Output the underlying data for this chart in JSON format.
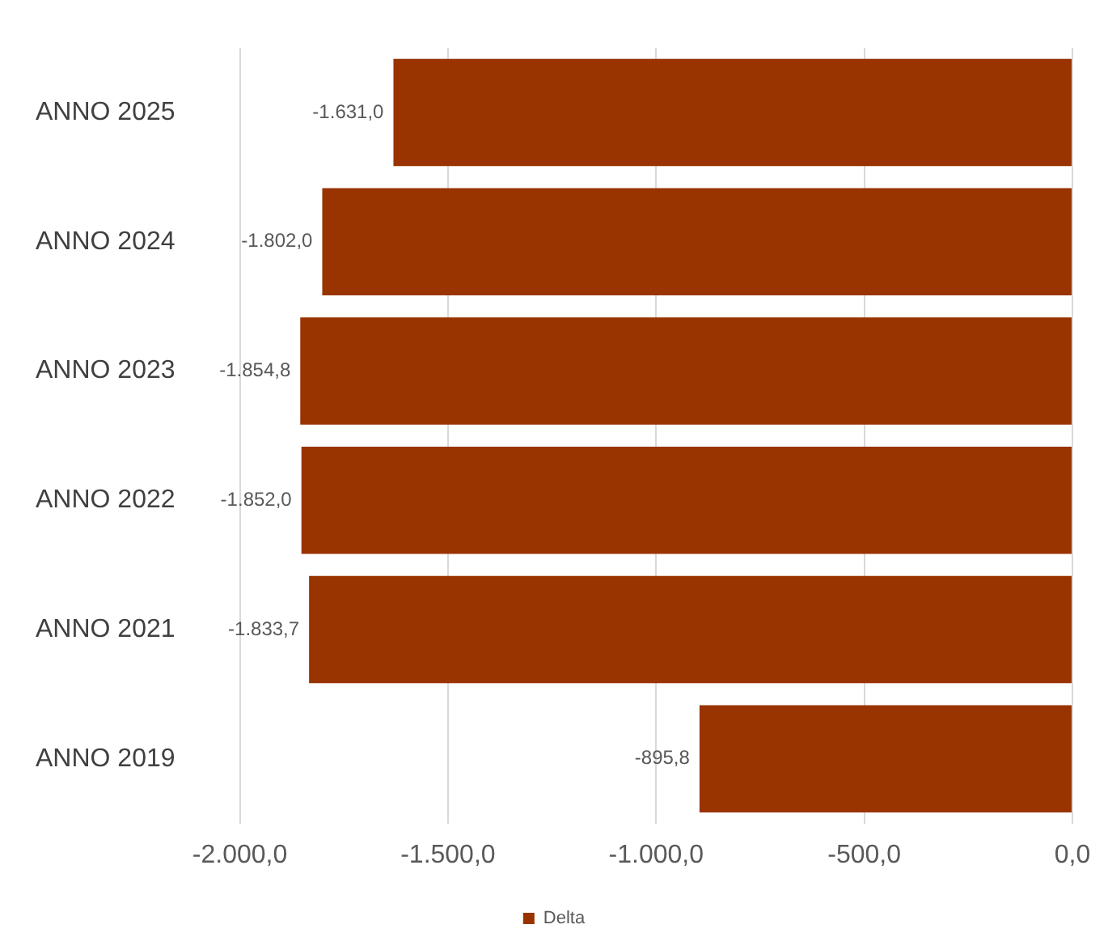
{
  "chart_data": {
    "type": "bar",
    "orientation": "horizontal",
    "categories": [
      "ANNO 2025",
      "ANNO 2024",
      "ANNO 2023",
      "ANNO 2022",
      "ANNO 2021",
      "ANNO 2019"
    ],
    "series": [
      {
        "name": "Delta",
        "color": "#993300",
        "values": [
          -1631.0,
          -1802.0,
          -1854.8,
          -1852.0,
          -1833.7,
          -895.8
        ],
        "value_labels": [
          "-1.631,0",
          "-1.802,0",
          "-1.854,8",
          "-1.852,0",
          "-1.833,7",
          "-895,8"
        ]
      }
    ],
    "xlim": [
      -2000,
      0
    ],
    "xticks": [
      {
        "value": -2000,
        "label": "-2.000,0"
      },
      {
        "value": -1500,
        "label": "-1.500,0"
      },
      {
        "value": -1000,
        "label": "-1.000,0"
      },
      {
        "value": -500,
        "label": "-500,0"
      },
      {
        "value": 0,
        "label": "0,0"
      }
    ],
    "grid": "x",
    "legend": "bottom"
  }
}
